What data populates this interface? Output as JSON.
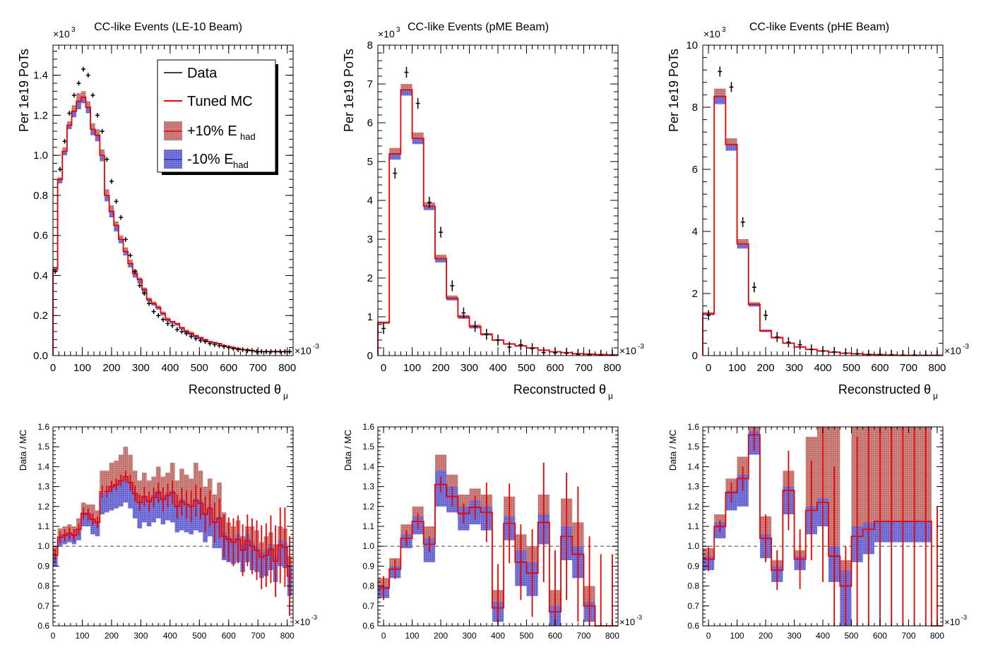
{
  "legend": {
    "data_label": "Data",
    "mc_label": "Tuned MC",
    "plus_label": "+10% E",
    "minus_label": "-10% E",
    "sub_label": "had"
  },
  "colors": {
    "data": "#000000",
    "mc": "#ee0000",
    "plus_band": "#c0605c",
    "minus_band": "#5656c8",
    "ref_line": "#777777"
  },
  "axis_labels": {
    "x_main": "Reconstructed θ",
    "x_sub": "μ",
    "y_top": "Per 1e19 PoTs",
    "y_ratio": "Data / MC",
    "x_scale": "×10",
    "x_scale_exp": "-3",
    "y_scale": "×10",
    "y_scale_exp": "3"
  },
  "chart_data": [
    {
      "type": "histogram",
      "title": "CC-like Events (LE-10 Beam)",
      "xlabel": "Reconstructed θμ",
      "ylabel": "Per 1e19 PoTs",
      "xlim": [
        0,
        820
      ],
      "ylim": [
        0,
        1.55
      ],
      "y_multiplier": "10^3",
      "x_multiplier": "10^-3",
      "x_ticks": [
        0,
        100,
        200,
        300,
        400,
        500,
        600,
        700,
        800
      ],
      "y_ticks": [
        0,
        0.2,
        0.4,
        0.6,
        0.8,
        1.0,
        1.2,
        1.4
      ],
      "y_tick_labels": [
        "0.0",
        "0.2",
        "0.4",
        "0.6",
        "0.8",
        "1.0",
        "1.2",
        "1.4"
      ],
      "bin_width": 16,
      "x_start": 0,
      "legend": [
        "Data",
        "Tuned MC",
        "+10% E_had",
        "-10% E_had"
      ],
      "legend_position": "top-right",
      "mc": [
        0.43,
        0.88,
        1.02,
        1.15,
        1.22,
        1.27,
        1.29,
        1.24,
        1.13,
        1.1,
        1.0,
        0.8,
        0.72,
        0.65,
        0.58,
        0.52,
        0.46,
        0.41,
        0.38,
        0.33,
        0.28,
        0.26,
        0.24,
        0.21,
        0.18,
        0.17,
        0.16,
        0.14,
        0.12,
        0.11,
        0.1,
        0.09,
        0.08,
        0.07,
        0.065,
        0.06,
        0.05,
        0.045,
        0.04,
        0.035,
        0.03,
        0.03,
        0.025,
        0.02,
        0.02,
        0.02,
        0.02,
        0.02,
        0.02,
        0.02,
        0.02
      ],
      "plus": [
        0.44,
        0.89,
        1.04,
        1.17,
        1.25,
        1.31,
        1.32,
        1.27,
        1.16,
        1.13,
        1.03,
        0.83,
        0.75,
        0.67,
        0.6,
        0.54,
        0.48,
        0.43,
        0.39,
        0.34,
        0.29,
        0.27,
        0.25,
        0.22,
        0.19,
        0.17,
        0.16,
        0.14,
        0.13,
        0.12,
        0.1,
        0.09,
        0.08,
        0.07,
        0.066,
        0.06,
        0.05,
        0.045,
        0.04,
        0.035,
        0.03,
        0.03,
        0.025,
        0.02,
        0.02,
        0.02,
        0.02,
        0.02,
        0.02,
        0.02,
        0.02
      ],
      "minus": [
        0.42,
        0.86,
        1.0,
        1.13,
        1.19,
        1.23,
        1.26,
        1.21,
        1.1,
        1.07,
        0.97,
        0.77,
        0.69,
        0.62,
        0.56,
        0.5,
        0.44,
        0.39,
        0.36,
        0.31,
        0.27,
        0.25,
        0.23,
        0.2,
        0.17,
        0.16,
        0.15,
        0.13,
        0.11,
        0.1,
        0.09,
        0.08,
        0.07,
        0.065,
        0.06,
        0.055,
        0.048,
        0.042,
        0.038,
        0.033,
        0.028,
        0.028,
        0.023,
        0.019,
        0.019,
        0.019,
        0.019,
        0.019,
        0.019,
        0.019,
        0.019
      ],
      "data": [
        0.42,
        0.93,
        1.07,
        1.21,
        1.3,
        1.36,
        1.43,
        1.4,
        1.3,
        1.2,
        1.12,
        0.98,
        0.87,
        0.77,
        0.69,
        0.58,
        0.5,
        0.42,
        0.35,
        0.31,
        0.26,
        0.22,
        0.2,
        0.18,
        0.16,
        0.15,
        0.13,
        0.12,
        0.11,
        0.095,
        0.085,
        0.075,
        0.07,
        0.06,
        0.055,
        0.05,
        0.045,
        0.04,
        0.035,
        0.03,
        0.03,
        0.025,
        0.025,
        0.02,
        0.02,
        0.02,
        0.02,
        0.02,
        0.02,
        0.02,
        0.02
      ],
      "ratio": {
        "xlim": [
          0,
          820
        ],
        "ylim": [
          0.6,
          1.6
        ],
        "y_ticks": [
          0.6,
          0.7,
          0.8,
          0.9,
          1.0,
          1.1,
          1.2,
          1.3,
          1.4,
          1.5,
          1.6
        ],
        "bin_width": 16,
        "x_start": 0,
        "plus_lo": [
          0.95,
          1.04,
          1.05,
          1.06,
          1.05,
          1.08,
          1.16,
          1.15,
          1.13,
          1.12,
          1.28,
          1.27,
          1.3,
          1.31,
          1.33,
          1.35,
          1.32,
          1.26,
          1.22,
          1.25,
          1.21,
          1.23,
          1.26,
          1.22,
          1.24,
          1.26,
          1.19,
          1.21,
          1.2,
          1.19,
          1.22,
          1.2,
          1.15,
          1.18,
          1.1,
          1.13,
          1.03,
          1.02,
          1.0,
          1.01,
          0.95,
          1.0,
          0.98,
          0.96,
          0.92,
          0.93,
          0.96,
          0.9,
          0.98,
          0.97,
          0.8
        ],
        "plus_hi": [
          1.0,
          1.09,
          1.1,
          1.11,
          1.1,
          1.14,
          1.22,
          1.21,
          1.21,
          1.18,
          1.38,
          1.38,
          1.42,
          1.43,
          1.46,
          1.5,
          1.46,
          1.38,
          1.33,
          1.37,
          1.33,
          1.35,
          1.4,
          1.35,
          1.37,
          1.42,
          1.33,
          1.39,
          1.36,
          1.34,
          1.42,
          1.38,
          1.3,
          1.34,
          1.26,
          1.32,
          1.17,
          1.12,
          1.1,
          1.13,
          1.05,
          1.1,
          1.1,
          1.08,
          1.02,
          1.05,
          1.07,
          1.01,
          1.1,
          1.09,
          0.95
        ],
        "minus_lo": [
          0.9,
          1.0,
          1.01,
          1.02,
          1.01,
          1.03,
          1.1,
          1.1,
          1.06,
          1.05,
          1.16,
          1.17,
          1.18,
          1.19,
          1.2,
          1.22,
          1.19,
          1.14,
          1.09,
          1.12,
          1.1,
          1.12,
          1.14,
          1.11,
          1.13,
          1.12,
          1.07,
          1.08,
          1.07,
          1.06,
          1.08,
          1.07,
          1.02,
          1.05,
          0.99,
          0.99,
          0.93,
          0.92,
          0.91,
          0.92,
          0.87,
          0.92,
          0.88,
          0.87,
          0.84,
          0.85,
          0.88,
          0.82,
          0.9,
          0.89,
          0.75
        ],
        "minus_hi": [
          0.96,
          1.05,
          1.06,
          1.07,
          1.06,
          1.09,
          1.17,
          1.17,
          1.14,
          1.12,
          1.27,
          1.28,
          1.3,
          1.31,
          1.33,
          1.35,
          1.32,
          1.27,
          1.22,
          1.25,
          1.24,
          1.26,
          1.28,
          1.25,
          1.27,
          1.28,
          1.21,
          1.24,
          1.22,
          1.21,
          1.24,
          1.23,
          1.17,
          1.2,
          1.14,
          1.15,
          1.07,
          1.05,
          1.04,
          1.06,
          1.01,
          1.06,
          1.02,
          1.0,
          0.97,
          0.98,
          1.01,
          0.95,
          1.03,
          1.02,
          0.9
        ],
        "err": [
          0.03,
          0.03,
          0.03,
          0.03,
          0.03,
          0.03,
          0.03,
          0.03,
          0.03,
          0.03,
          0.03,
          0.03,
          0.03,
          0.03,
          0.03,
          0.03,
          0.04,
          0.04,
          0.04,
          0.05,
          0.05,
          0.05,
          0.05,
          0.06,
          0.06,
          0.06,
          0.06,
          0.07,
          0.07,
          0.08,
          0.08,
          0.08,
          0.09,
          0.09,
          0.1,
          0.1,
          0.11,
          0.11,
          0.12,
          0.12,
          0.13,
          0.13,
          0.14,
          0.15,
          0.16,
          0.16,
          0.17,
          0.18,
          0.19,
          0.2,
          0.2
        ]
      }
    },
    {
      "type": "histogram",
      "title": "CC-like Events (pME Beam)",
      "xlabel": "Reconstructed θμ",
      "ylabel": "Per 1e19 PoTs",
      "xlim": [
        -20,
        820
      ],
      "ylim": [
        0,
        8
      ],
      "y_multiplier": "10^3",
      "x_multiplier": "10^-3",
      "x_ticks": [
        0,
        100,
        200,
        300,
        400,
        500,
        600,
        700,
        800
      ],
      "y_ticks": [
        0,
        1,
        2,
        3,
        4,
        5,
        6,
        7,
        8
      ],
      "y_tick_labels": [
        "0",
        "1",
        "2",
        "3",
        "4",
        "5",
        "6",
        "7",
        "8"
      ],
      "bin_width": 40,
      "x_start": -20,
      "mc": [
        0.85,
        5.2,
        6.85,
        5.6,
        3.85,
        2.5,
        1.48,
        1.0,
        0.75,
        0.55,
        0.4,
        0.3,
        0.25,
        0.2,
        0.14,
        0.1,
        0.08,
        0.05,
        0.04,
        0.03,
        0.02
      ],
      "plus": [
        0.88,
        5.35,
        7.0,
        5.75,
        3.95,
        2.6,
        1.55,
        1.05,
        0.8,
        0.58,
        0.42,
        0.32,
        0.27,
        0.21,
        0.15,
        0.11,
        0.09,
        0.06,
        0.05,
        0.04,
        0.03
      ],
      "minus": [
        0.82,
        5.05,
        6.7,
        5.45,
        3.75,
        2.4,
        1.42,
        0.95,
        0.7,
        0.52,
        0.38,
        0.28,
        0.23,
        0.18,
        0.13,
        0.09,
        0.07,
        0.05,
        0.04,
        0.03,
        0.02
      ],
      "data": [
        0.7,
        4.7,
        7.3,
        6.5,
        3.95,
        3.18,
        1.8,
        1.1,
        0.75,
        0.55,
        0.4,
        0.22,
        0.28,
        0.18,
        0.08,
        0.07,
        0.06,
        0.03,
        0.02,
        0.01,
        0.01
      ],
      "ratio": {
        "xlim": [
          -20,
          820
        ],
        "ylim": [
          0.6,
          1.6
        ],
        "y_ticks": [
          0.6,
          0.7,
          0.8,
          0.9,
          1.0,
          1.1,
          1.2,
          1.3,
          1.4,
          1.5,
          1.6
        ],
        "bin_width": 40,
        "x_start": -20,
        "plus_lo": [
          0.78,
          0.87,
          1.02,
          1.1,
          0.98,
          1.24,
          1.2,
          1.13,
          1.16,
          1.14,
          0.66,
          1.08,
          0.86,
          0.81,
          1.08,
          0.64,
          1.0,
          0.92,
          0.68,
          0.6,
          0.6
        ],
        "plus_hi": [
          0.84,
          0.94,
          1.11,
          1.2,
          1.1,
          1.46,
          1.36,
          1.26,
          1.29,
          1.26,
          0.78,
          1.25,
          1.06,
          1.0,
          1.26,
          0.78,
          1.24,
          1.12,
          0.8,
          0.6,
          0.6
        ],
        "minus_lo": [
          0.74,
          0.84,
          0.99,
          1.06,
          0.92,
          1.2,
          1.17,
          1.08,
          1.11,
          1.08,
          0.62,
          1.03,
          0.8,
          0.75,
          1.01,
          0.6,
          0.93,
          0.84,
          0.62,
          0.6,
          0.6
        ],
        "minus_hi": [
          0.8,
          0.9,
          1.06,
          1.15,
          1.04,
          1.38,
          1.3,
          1.2,
          1.23,
          1.2,
          0.72,
          1.15,
          0.98,
          0.92,
          1.16,
          0.7,
          1.1,
          1.0,
          0.72,
          0.6,
          0.6
        ],
        "err": [
          0.06,
          0.05,
          0.04,
          0.04,
          0.04,
          0.04,
          0.05,
          0.05,
          0.06,
          0.15,
          0.22,
          0.2,
          0.19,
          0.22,
          0.3,
          0.31,
          0.32,
          0.34,
          0.35,
          0.36,
          0.36
        ]
      }
    },
    {
      "type": "histogram",
      "title": "CC-like Events (pHE Beam)",
      "xlabel": "Reconstructed θμ",
      "ylabel": "Per 1e19 PoTs",
      "xlim": [
        -20,
        820
      ],
      "ylim": [
        0,
        10
      ],
      "y_multiplier": "10^3",
      "x_multiplier": "10^-3",
      "x_ticks": [
        0,
        100,
        200,
        300,
        400,
        500,
        600,
        700,
        800
      ],
      "y_ticks": [
        0,
        2,
        4,
        6,
        8,
        10
      ],
      "y_tick_labels": [
        "0",
        "2",
        "4",
        "6",
        "8",
        "10"
      ],
      "bin_width": 40,
      "x_start": -20,
      "mc": [
        1.35,
        8.35,
        6.8,
        3.6,
        1.65,
        0.8,
        0.58,
        0.4,
        0.28,
        0.2,
        0.15,
        0.11,
        0.08,
        0.06,
        0.04,
        0.03,
        0.02,
        0.01,
        0.01,
        0.01,
        0.01
      ],
      "plus": [
        1.4,
        8.6,
        7.0,
        3.75,
        1.72,
        0.84,
        0.61,
        0.42,
        0.3,
        0.21,
        0.16,
        0.12,
        0.09,
        0.06,
        0.04,
        0.03,
        0.02,
        0.01,
        0.01,
        0.01,
        0.01
      ],
      "minus": [
        1.3,
        8.1,
        6.6,
        3.45,
        1.58,
        0.76,
        0.55,
        0.38,
        0.26,
        0.19,
        0.14,
        0.1,
        0.07,
        0.05,
        0.04,
        0.03,
        0.02,
        0.01,
        0.01,
        0.01,
        0.01
      ],
      "data": [
        1.3,
        9.15,
        8.65,
        4.3,
        2.2,
        1.3,
        0.6,
        0.43,
        0.35,
        0.2,
        0.15,
        0.12,
        0.08,
        0.06,
        0.03,
        0.04,
        0.03,
        0.02,
        0.02,
        0.01,
        0.01
      ],
      "ratio": {
        "xlim": [
          -20,
          820
        ],
        "ylim": [
          0.6,
          1.6
        ],
        "y_ticks": [
          0.6,
          0.7,
          0.8,
          0.9,
          1.0,
          1.1,
          1.2,
          1.3,
          1.4,
          1.5,
          1.6
        ],
        "bin_width": 40,
        "x_start": -20,
        "plus_lo": [
          0.92,
          1.08,
          1.26,
          1.32,
          1.54,
          1.02,
          0.86,
          1.26,
          0.92,
          1.16,
          1.2,
          0.9,
          0.72,
          1.0,
          1.05,
          1.12,
          1.12,
          1.12,
          1.12,
          1.12,
          0.6
        ],
        "plus_hi": [
          0.99,
          1.16,
          1.34,
          1.45,
          1.6,
          1.15,
          0.93,
          1.38,
          0.98,
          1.55,
          1.6,
          1.6,
          0.93,
          1.6,
          1.6,
          1.6,
          1.6,
          1.6,
          1.6,
          1.6,
          0.6
        ],
        "minus_lo": [
          0.88,
          1.04,
          1.18,
          1.2,
          1.46,
          0.94,
          0.82,
          1.16,
          0.88,
          1.06,
          1.1,
          0.82,
          0.6,
          0.92,
          0.96,
          1.02,
          1.02,
          1.02,
          1.02,
          1.02,
          0.6
        ],
        "minus_hi": [
          0.95,
          1.12,
          1.28,
          1.36,
          1.58,
          1.06,
          0.9,
          1.3,
          0.95,
          1.2,
          1.24,
          1.0,
          0.88,
          1.1,
          1.12,
          1.13,
          1.13,
          1.13,
          1.13,
          1.13,
          0.6
        ],
        "err": [
          0.06,
          0.03,
          0.05,
          0.06,
          0.08,
          0.12,
          0.1,
          0.2,
          0.15,
          0.25,
          0.4,
          0.45,
          0.2,
          0.5,
          0.6,
          0.6,
          0.6,
          0.6,
          0.6,
          0.6,
          0.6
        ]
      }
    }
  ]
}
